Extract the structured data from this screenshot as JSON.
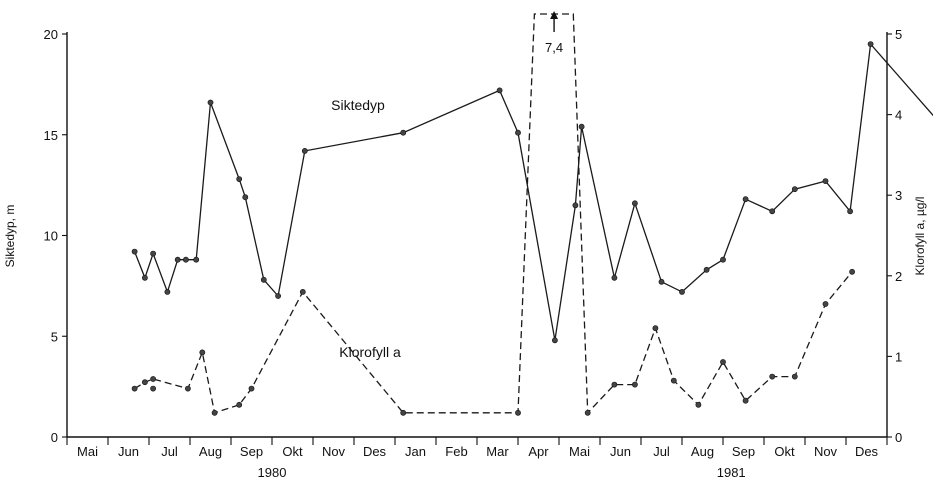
{
  "chart_data": {
    "type": "line",
    "title": "",
    "xlabel": "",
    "ylabel": "Siktedyp, m",
    "y2label": "Klorofyll a, µg/l",
    "ylim": [
      0,
      20
    ],
    "y2lim": [
      0,
      5
    ],
    "yticks": [
      "0",
      "5",
      "10",
      "15",
      "20"
    ],
    "y2ticks": [
      "0",
      "1",
      "2",
      "3",
      "4",
      "5"
    ],
    "months": [
      "Mai",
      "Jun",
      "Jul",
      "Aug",
      "Sep",
      "Okt",
      "Nov",
      "Des",
      "Jan",
      "Feb",
      "Mar",
      "Apr",
      "Mai",
      "Jun",
      "Jul",
      "Aug",
      "Sep",
      "Okt",
      "Nov",
      "Des"
    ],
    "years": [
      {
        "label": "1980",
        "center_month": 5.0
      },
      {
        "label": "1981",
        "center_month": 16.2
      }
    ],
    "annotation": "7,4",
    "series": [
      {
        "name": "Siktedyp",
        "axis": "left",
        "style": "solid",
        "points": [
          [
            1.65,
            9.2
          ],
          [
            1.9,
            7.9
          ],
          [
            2.1,
            9.1
          ],
          [
            2.45,
            7.2
          ],
          [
            2.7,
            8.8
          ],
          [
            2.9,
            8.8
          ],
          [
            3.15,
            8.8
          ],
          [
            3.5,
            16.6
          ],
          [
            4.2,
            12.8
          ],
          [
            4.35,
            11.9
          ],
          [
            4.8,
            7.8
          ],
          [
            5.15,
            7.0
          ],
          [
            5.8,
            14.2
          ],
          [
            8.2,
            15.1
          ],
          [
            10.55,
            17.2
          ],
          [
            11.0,
            15.1
          ],
          [
            11.9,
            4.8
          ],
          [
            12.4,
            11.5
          ],
          [
            12.55,
            15.4
          ],
          [
            13.35,
            7.9
          ],
          [
            13.85,
            11.6
          ],
          [
            14.5,
            7.7
          ],
          [
            15.0,
            7.2
          ],
          [
            15.6,
            8.3
          ],
          [
            16.0,
            8.8
          ],
          [
            16.55,
            11.8
          ],
          [
            17.2,
            11.2
          ],
          [
            17.75,
            12.3
          ],
          [
            18.5,
            12.7
          ],
          [
            19.1,
            11.2
          ],
          [
            19.6,
            19.5
          ],
          [
            22.1,
            13.7
          ]
        ]
      },
      {
        "name": "Klorofyll a",
        "axis": "right",
        "style": "dashed",
        "points": [
          [
            1.65,
            0.6
          ],
          [
            1.9,
            0.68
          ],
          [
            2.1,
            0.72
          ],
          [
            2.95,
            0.6
          ],
          [
            3.3,
            1.05
          ],
          [
            3.6,
            0.3
          ],
          [
            4.2,
            0.4
          ],
          [
            4.5,
            0.6
          ],
          [
            5.75,
            1.8
          ],
          [
            8.2,
            0.3
          ],
          [
            11.0,
            0.3
          ],
          [
            11.4,
            5.3
          ],
          [
            12.35,
            5.3
          ],
          [
            12.7,
            0.3
          ],
          [
            13.35,
            0.65
          ],
          [
            13.85,
            0.65
          ],
          [
            14.35,
            1.35
          ],
          [
            14.8,
            0.7
          ],
          [
            15.4,
            0.4
          ],
          [
            16.0,
            0.93
          ],
          [
            16.55,
            0.45
          ],
          [
            17.2,
            0.75
          ],
          [
            17.75,
            0.75
          ],
          [
            18.5,
            1.65
          ],
          [
            19.15,
            2.05
          ]
        ],
        "extra_points": [
          [
            2.1,
            0.6
          ]
        ]
      }
    ]
  }
}
